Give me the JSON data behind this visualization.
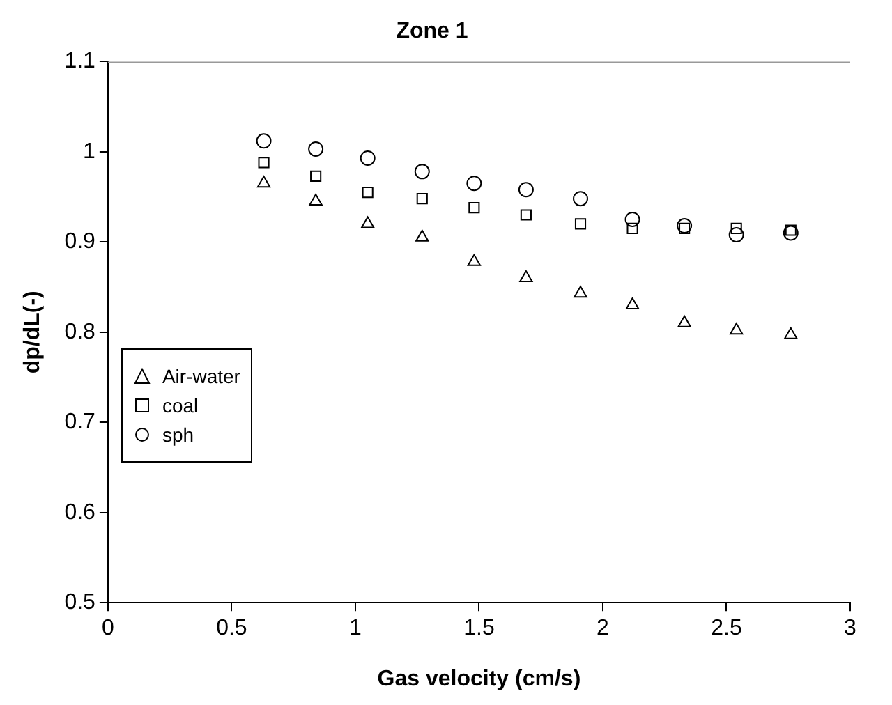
{
  "chart_data": {
    "type": "scatter",
    "title": "Zone 1",
    "xlabel": "Gas velocity (cm/s)",
    "ylabel": "dp/dL(-)",
    "x": [
      0.63,
      0.84,
      1.05,
      1.27,
      1.48,
      1.69,
      1.91,
      2.12,
      2.33,
      2.54,
      2.76
    ],
    "series": [
      {
        "name": "Air-water",
        "color": "#000000",
        "marker": "triangle",
        "values": [
          0.965,
          0.945,
          0.92,
          0.905,
          0.878,
          0.86,
          0.843,
          0.83,
          0.81,
          0.802,
          0.797
        ]
      },
      {
        "name": "coal",
        "color": "#000000",
        "marker": "square",
        "values": [
          0.988,
          0.973,
          0.955,
          0.948,
          0.938,
          0.93,
          0.92,
          0.915,
          0.915,
          0.915,
          0.913
        ]
      },
      {
        "name": "sph",
        "color": "#000000",
        "marker": "circle",
        "values": [
          1.012,
          1.003,
          0.993,
          0.978,
          0.965,
          0.958,
          0.948,
          0.925,
          0.918,
          0.908,
          0.91
        ]
      }
    ],
    "xlim": [
      0,
      3
    ],
    "xticks": [
      0,
      0.5,
      1,
      1.5,
      2,
      2.5,
      3
    ],
    "ylim": [
      0.5,
      1.1
    ],
    "yticks": [
      0.5,
      0.6,
      0.7,
      0.8,
      0.9,
      1,
      1.1
    ],
    "grid": false,
    "legend": "left"
  }
}
